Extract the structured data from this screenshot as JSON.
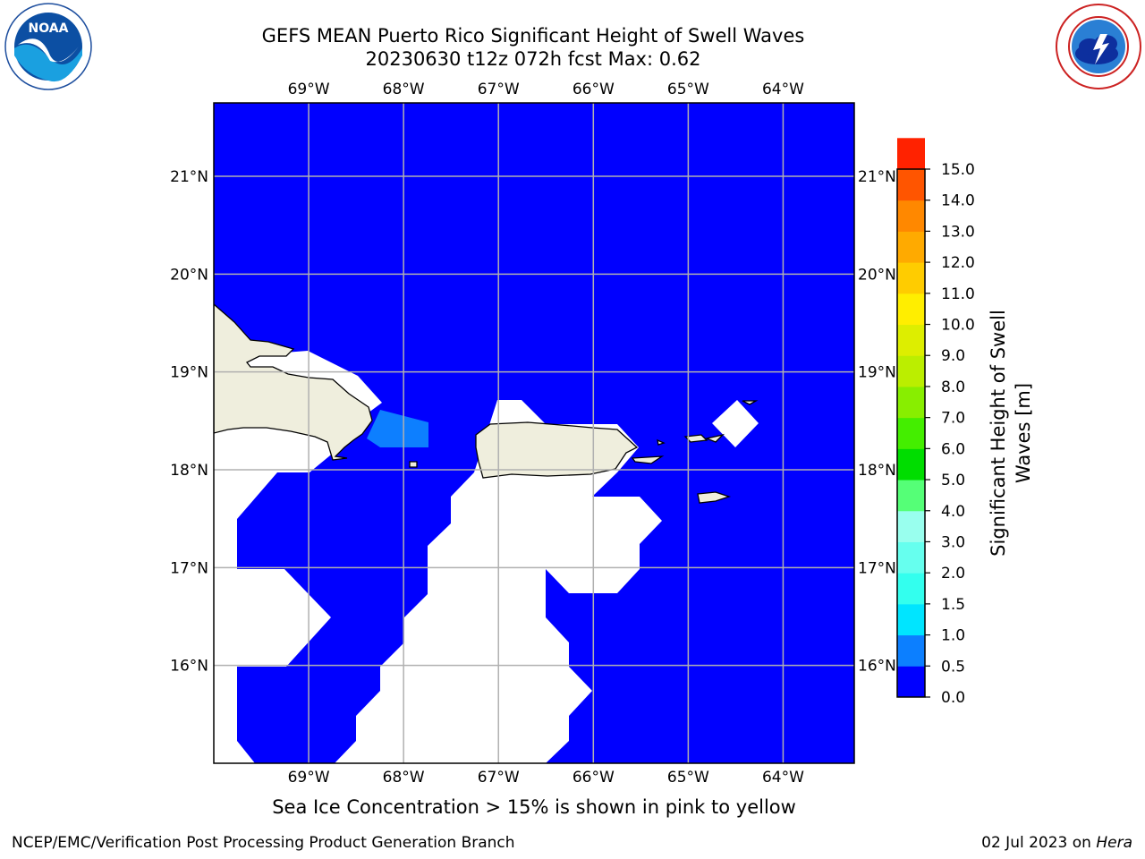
{
  "title": {
    "line1": "GEFS MEAN Puerto Rico Significant Height of Swell Waves",
    "line2": "20230630 t12z 072h fcst   Max: 0.62"
  },
  "logos": {
    "left": {
      "icon": "noaa-logo-icon",
      "text": "NOAA"
    },
    "right": {
      "icon": "national-weather-service-logo-icon"
    }
  },
  "map": {
    "lon_ticks": [
      "69°W",
      "68°W",
      "67°W",
      "66°W",
      "65°W",
      "64°W"
    ],
    "lat_ticks": [
      "21°N",
      "20°N",
      "19°N",
      "18°N",
      "17°N",
      "16°N"
    ],
    "lon_range": [
      -70,
      -63.25
    ],
    "lat_range": [
      15.0,
      21.75
    ],
    "colors": {
      "ocean": "#0000ff",
      "land": "#efeedd",
      "nodata": "#ffffff",
      "grid": "#b0b0b0",
      "light_blue": "#0d7fff"
    }
  },
  "colorbar": {
    "label": "Significant Height of Swell Waves [m]",
    "ticks": [
      "15.0",
      "14.0",
      "13.0",
      "12.0",
      "11.0",
      "10.0",
      "9.0",
      "8.0",
      "7.0",
      "6.0",
      "5.0",
      "4.0",
      "3.0",
      "2.0",
      "1.5",
      "1.0",
      "0.5",
      "0.0"
    ],
    "colors": [
      "#0000ff",
      "#0c7fff",
      "#00e5ff",
      "#33ffee",
      "#66ffee",
      "#99ffee",
      "#55ff77",
      "#00dd00",
      "#44ee00",
      "#88ee00",
      "#bbee00",
      "#ddee00",
      "#ffee00",
      "#ffcc00",
      "#ffaa00",
      "#ff8800",
      "#ff5500",
      "#ff2200",
      "#ff0000"
    ]
  },
  "note": "Sea Ice Concentration > 15% is shown in pink to yellow",
  "footer": {
    "left": "NCEP/EMC/Verification Post Processing Product Generation Branch",
    "date": "02 Jul 2023 on ",
    "machine": "Hera"
  }
}
